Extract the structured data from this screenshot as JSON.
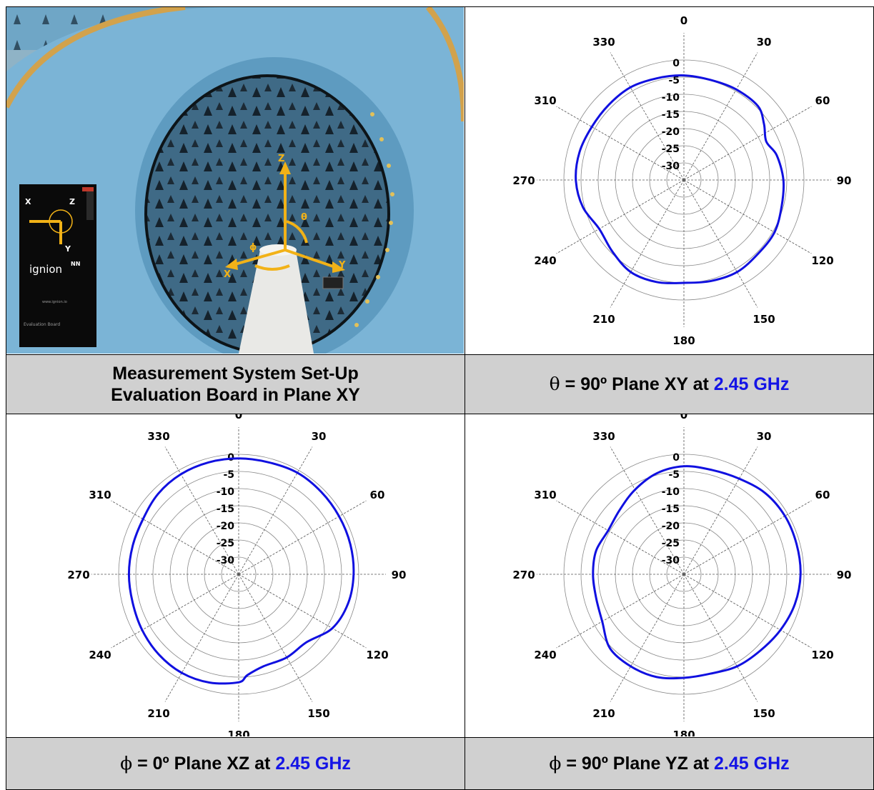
{
  "captions": {
    "setup_line1": "Measurement System Set-Up",
    "setup_line2": "Evaluation Board in Plane XY",
    "xy": {
      "symbol": "θ",
      "text": " = 90º Plane XY at ",
      "freq": "2.45 GHz"
    },
    "xz": {
      "symbol": "ϕ",
      "text": " = 0º Plane XZ at ",
      "freq": "2.45 GHz"
    },
    "yz": {
      "symbol": "ϕ",
      "text": " = 90º Plane YZ at ",
      "freq": "2.45 GHz"
    }
  },
  "photo": {
    "axis_labels": [
      "Z",
      "X",
      "Y",
      "θ",
      "ϕ"
    ],
    "board_axis_labels": [
      "X",
      "Z",
      "Y"
    ],
    "board_brand": "ignion",
    "board_brand_mark": "NN",
    "board_url": "www.ignion.io",
    "board_title": "Evaluation Board"
  },
  "colors": {
    "trace": "#1010e0",
    "caption_bg": "#d0d0d0",
    "freq_text": "#1414e6",
    "grid": "#888888"
  },
  "chart_data": [
    {
      "type": "polar",
      "title": "",
      "angle_labels": [
        "0",
        "30",
        "60",
        "90",
        "120",
        "150",
        "180",
        "210",
        "240",
        "270",
        "310",
        "330"
      ],
      "radial_labels": [
        "0",
        "-5",
        "-10",
        "-15",
        "-20",
        "-25",
        "-30"
      ],
      "rlim": [
        -35,
        0
      ],
      "series": [
        {
          "angles": [
            0,
            15,
            30,
            45,
            55,
            65,
            75,
            90,
            105,
            120,
            135,
            150,
            165,
            180,
            195,
            210,
            225,
            240,
            255,
            270,
            285,
            300,
            315,
            330,
            345
          ],
          "values": [
            -4.5,
            -4.8,
            -4.5,
            -4.5,
            -6.5,
            -8.5,
            -7,
            -6,
            -5.5,
            -4.5,
            -4.5,
            -4,
            -4.5,
            -5,
            -4.2,
            -4,
            -5.5,
            -6.5,
            -4.5,
            -3.5,
            -3.5,
            -4,
            -4,
            -3.8,
            -4.3
          ]
        }
      ]
    },
    {
      "type": "polar",
      "title": "",
      "angle_labels": [
        "0",
        "30",
        "60",
        "90",
        "120",
        "150",
        "180",
        "210",
        "240",
        "270",
        "310",
        "330"
      ],
      "radial_labels": [
        "0",
        "-5",
        "-10",
        "-15",
        "-20",
        "-25",
        "-30"
      ],
      "rlim": [
        -35,
        0
      ],
      "series": [
        {
          "angles": [
            0,
            15,
            30,
            45,
            60,
            75,
            90,
            105,
            120,
            135,
            150,
            165,
            175,
            180,
            195,
            210,
            225,
            240,
            255,
            270,
            285,
            300,
            315,
            330,
            345
          ],
          "values": [
            -1.2,
            -1.2,
            -0.8,
            -1,
            -1.2,
            -1.3,
            -1.5,
            -2,
            -3.5,
            -7,
            -7,
            -7.2,
            -5.5,
            -3.5,
            -2.3,
            -1.8,
            -2,
            -2.5,
            -3,
            -3,
            -3,
            -2.8,
            -1.8,
            -1.3,
            -1.2
          ]
        }
      ]
    },
    {
      "type": "polar",
      "title": "",
      "angle_labels": [
        "0",
        "30",
        "60",
        "90",
        "120",
        "150",
        "180",
        "210",
        "240",
        "270",
        "310",
        "330"
      ],
      "radial_labels": [
        "0",
        "-5",
        "-10",
        "-15",
        "-20",
        "-25",
        "-30"
      ],
      "rlim": [
        -35,
        0
      ],
      "series": [
        {
          "angles": [
            0,
            15,
            30,
            45,
            60,
            75,
            90,
            105,
            120,
            135,
            150,
            165,
            180,
            195,
            210,
            225,
            240,
            255,
            270,
            285,
            300,
            315,
            330,
            345
          ],
          "values": [
            -3.5,
            -3.5,
            -2.8,
            -1.5,
            -1,
            -1,
            -1,
            -1.5,
            -2.5,
            -3.5,
            -4,
            -5,
            -4.8,
            -4,
            -4,
            -4.5,
            -7.5,
            -8.5,
            -8.5,
            -8.5,
            -9.5,
            -8.5,
            -6.5,
            -4.5
          ]
        }
      ]
    }
  ]
}
